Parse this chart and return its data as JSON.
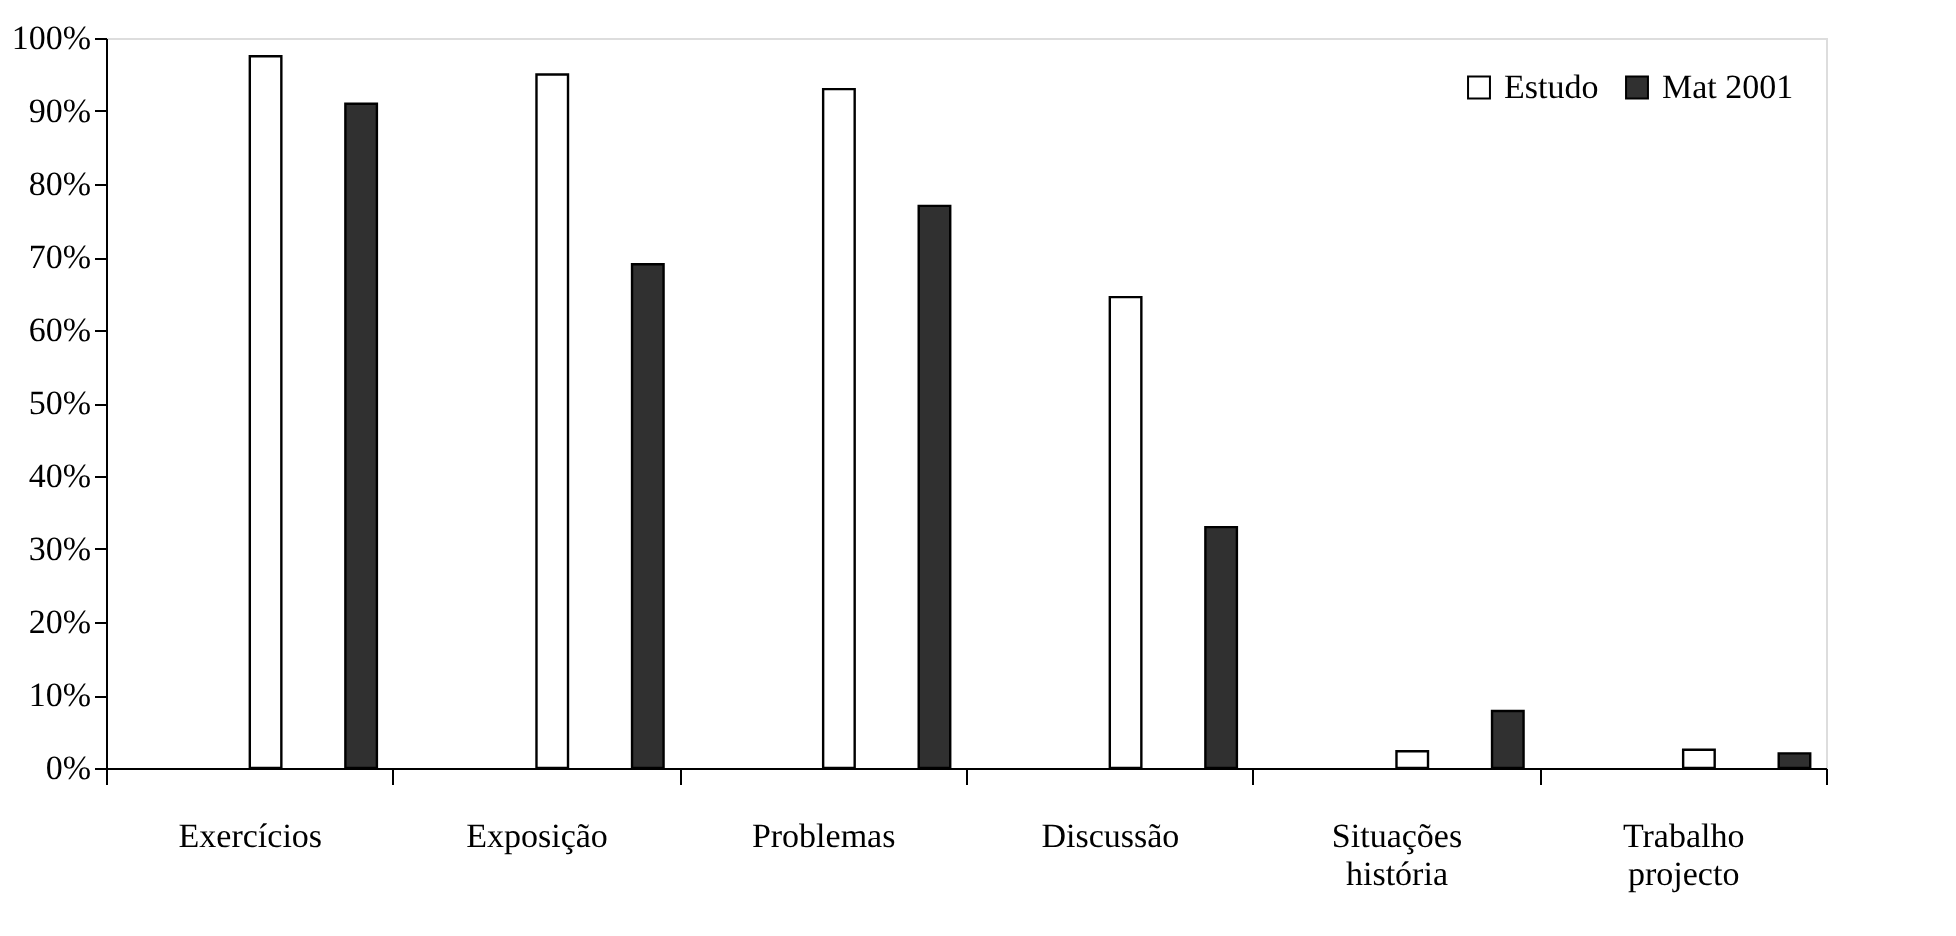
{
  "chart_data": {
    "type": "bar",
    "categories": [
      "Exercícios",
      "Exposição",
      "Problemas",
      "Discussão",
      "Situações história",
      "Trabalho projecto"
    ],
    "series": [
      {
        "name": "Estudo",
        "color": "#ffffff",
        "values": [
          97.5,
          95,
          93,
          64.5,
          2.3,
          2.5
        ]
      },
      {
        "name": "Mat 2001",
        "color": "#303030",
        "values": [
          91,
          69,
          77,
          33,
          7.8,
          2
        ]
      }
    ],
    "ylim": [
      0,
      100
    ],
    "yticks": [
      {
        "value": 0,
        "label": "0%"
      },
      {
        "value": 10,
        "label": "10%"
      },
      {
        "value": 20,
        "label": "20%"
      },
      {
        "value": 30,
        "label": "30%"
      },
      {
        "value": 40,
        "label": "40%"
      },
      {
        "value": 50,
        "label": "50%"
      },
      {
        "value": 60,
        "label": "60%"
      },
      {
        "value": 70,
        "label": "70%"
      },
      {
        "value": 80,
        "label": "80%"
      },
      {
        "value": 90,
        "label": "90%"
      },
      {
        "value": 100,
        "label": "100%"
      }
    ],
    "grid": false,
    "legend": "top right"
  }
}
